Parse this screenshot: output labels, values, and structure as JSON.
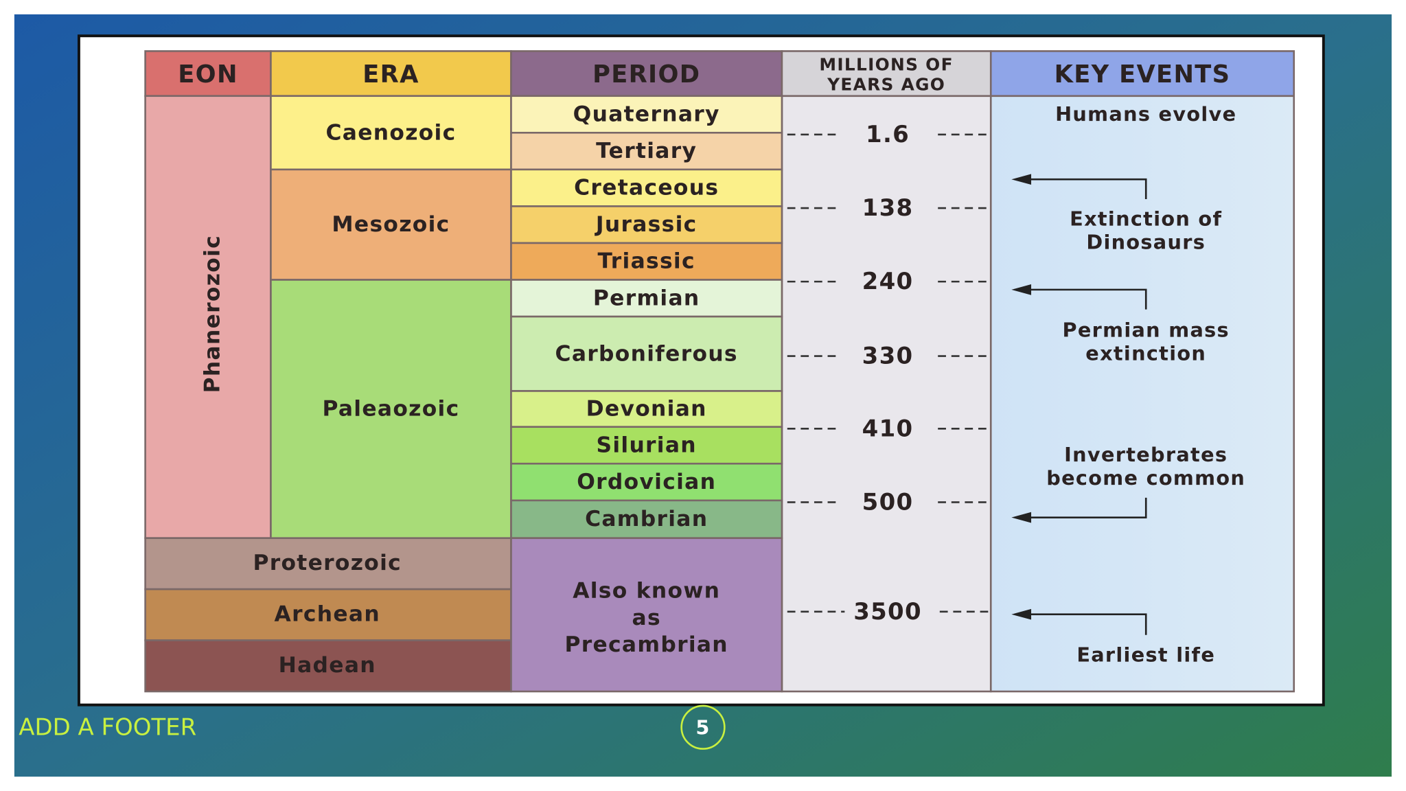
{
  "table": {
    "headers": {
      "eon": "EON",
      "era": "ERA",
      "period": "PERIOD",
      "mya": [
        "MILLIONS OF",
        "YEARS AGO"
      ],
      "events": "KEY EVENTS"
    },
    "eons": [
      "Phanerozoic",
      "Proterozoic",
      "Archean",
      "Hadean"
    ],
    "eras": [
      "Caenozoic",
      "Mesozoic",
      "Paleaozoic"
    ],
    "periods": [
      "Quaternary",
      "Tertiary",
      "Cretaceous",
      "Jurassic",
      "Triassic",
      "Permian",
      "Carboniferous",
      "Devonian",
      "Silurian",
      "Ordovician",
      "Cambrian"
    ],
    "precambrian": [
      "Also known",
      "as",
      "Precambrian"
    ],
    "mya": [
      1.6,
      138,
      240,
      330,
      410,
      500,
      3500
    ],
    "events": [
      [
        "Humans evolve"
      ],
      [
        "Extinction of",
        "Dinosaurs"
      ],
      [
        "Permian mass",
        "extinction"
      ],
      [
        "Invertebrates",
        "become common"
      ],
      [
        "Earliest life"
      ]
    ]
  },
  "footer": "ADD A FOOTER",
  "page_number": 5
}
